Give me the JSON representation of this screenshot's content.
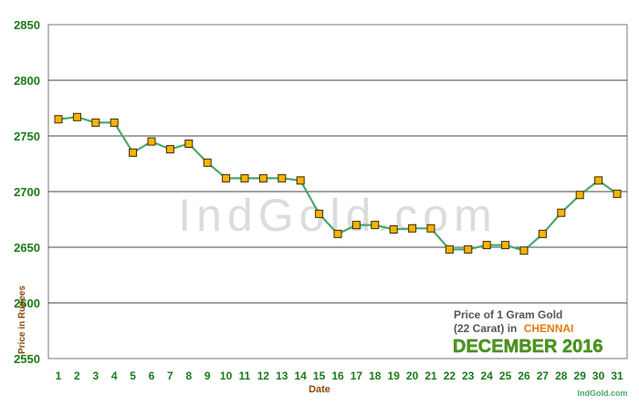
{
  "chart_data": {
    "type": "line",
    "title_line1": "Price of 1 Gram Gold",
    "title_line2_prefix": "(22 Carat) in",
    "title_city": "CHENNAI",
    "subtitle": "DECEMBER 2016",
    "watermark": "IndGold.com",
    "source": "IndGold.com",
    "xlabel": "Date",
    "ylabel": "Price in Rupees",
    "ylim": [
      2550,
      2850
    ],
    "yticks": [
      2550,
      2600,
      2650,
      2700,
      2750,
      2800,
      2850
    ],
    "grid": true,
    "x": [
      1,
      2,
      3,
      4,
      5,
      6,
      7,
      8,
      9,
      10,
      11,
      12,
      13,
      14,
      15,
      16,
      17,
      18,
      19,
      20,
      21,
      22,
      23,
      24,
      25,
      26,
      27,
      28,
      29,
      30,
      31
    ],
    "series": [
      {
        "values": [
          2765,
          2767,
          2762,
          2762,
          2735,
          2745,
          2738,
          2743,
          2726,
          2712,
          2712,
          2712,
          2712,
          2710,
          2680,
          2662,
          2670,
          2670,
          2666,
          2667,
          2667,
          2648,
          2648,
          2652,
          2652,
          2647,
          2662,
          2681,
          2697,
          2710,
          2698
        ]
      }
    ],
    "colors": {
      "line": "#4aa86a",
      "marker_fill": "#f5b400",
      "marker_stroke": "#3a2a00",
      "axis_text": "#1a7a1a",
      "ylabel_text": "#8b4a10",
      "title_text": "#555555",
      "city_text": "#e07a10",
      "subtitle_text": "#4c9a1a",
      "watermark": "#dcdcdc"
    }
  }
}
